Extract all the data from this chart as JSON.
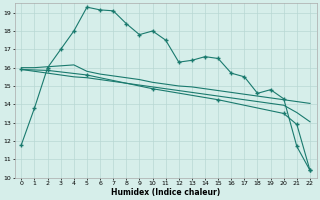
{
  "background_color": "#d6eeea",
  "grid_color": "#b8d8d4",
  "line_color": "#1a7a6e",
  "xlabel": "Humidex (Indice chaleur)",
  "ylim": [
    10,
    19.5
  ],
  "xlim": [
    -0.5,
    22.5
  ],
  "yticks": [
    10,
    11,
    12,
    13,
    14,
    15,
    16,
    17,
    18,
    19
  ],
  "xticks": [
    0,
    1,
    2,
    3,
    4,
    5,
    6,
    7,
    8,
    9,
    10,
    11,
    12,
    13,
    14,
    15,
    16,
    17,
    18,
    19,
    20,
    21,
    22
  ],
  "series1_x": [
    0,
    1,
    2,
    3,
    4,
    5,
    6,
    7,
    8,
    9,
    10,
    11,
    12,
    13,
    14,
    15,
    16,
    17,
    18,
    19,
    20,
    21,
    22
  ],
  "series1_y": [
    11.8,
    13.8,
    16.0,
    17.0,
    18.0,
    19.3,
    19.15,
    19.1,
    18.4,
    17.8,
    18.0,
    17.5,
    16.3,
    16.4,
    16.6,
    16.5,
    15.7,
    15.5,
    14.6,
    14.8,
    14.3,
    11.7,
    10.4
  ],
  "series2_x": [
    0,
    1,
    2,
    3,
    4,
    5,
    6,
    7,
    8,
    9,
    10,
    11,
    12,
    13,
    14,
    15,
    16,
    17,
    18,
    19,
    20,
    21,
    22
  ],
  "series2_y": [
    16.0,
    16.0,
    16.05,
    16.1,
    16.15,
    15.8,
    15.65,
    15.55,
    15.45,
    15.35,
    15.2,
    15.1,
    15.0,
    14.95,
    14.85,
    14.75,
    14.65,
    14.55,
    14.45,
    14.35,
    14.25,
    14.15,
    14.05
  ],
  "series3_x": [
    0,
    1,
    2,
    3,
    4,
    5,
    6,
    7,
    8,
    9,
    10,
    11,
    12,
    13,
    14,
    15,
    16,
    17,
    18,
    19,
    20,
    21,
    22
  ],
  "series3_y": [
    15.9,
    15.8,
    15.7,
    15.6,
    15.5,
    15.45,
    15.35,
    15.25,
    15.15,
    15.05,
    14.95,
    14.85,
    14.75,
    14.65,
    14.55,
    14.45,
    14.35,
    14.25,
    14.15,
    14.05,
    13.95,
    13.55,
    13.05
  ],
  "series4_x": [
    0,
    2,
    5,
    10,
    15,
    20,
    21,
    22
  ],
  "series4_y": [
    15.9,
    15.85,
    15.6,
    14.85,
    14.25,
    13.5,
    12.9,
    10.4
  ]
}
